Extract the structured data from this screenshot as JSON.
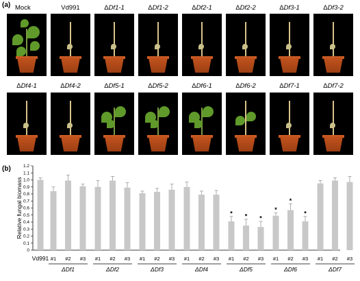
{
  "panel_a": {
    "label": "(a)",
    "rows": [
      [
        {
          "name": "Mock",
          "healthy": 3
        },
        {
          "name": "Vd991",
          "healthy": 0
        },
        {
          "name": "ΔDf1-1",
          "healthy": 0
        },
        {
          "name": "ΔDf1-2",
          "healthy": 0
        },
        {
          "name": "ΔDf2-1",
          "healthy": 0
        },
        {
          "name": "ΔDf2-2",
          "healthy": 0
        },
        {
          "name": "ΔDf3-1",
          "healthy": 0
        },
        {
          "name": "ΔDf3-2",
          "healthy": 0
        }
      ],
      [
        {
          "name": "ΔDf4-1",
          "healthy": 0
        },
        {
          "name": "ΔDf4-2",
          "healthy": 0
        },
        {
          "name": "ΔDf5-1",
          "healthy": 2
        },
        {
          "name": "ΔDf5-2",
          "healthy": 2
        },
        {
          "name": "ΔDf6-1",
          "healthy": 2
        },
        {
          "name": "ΔDf6-2",
          "healthy": 1
        },
        {
          "name": "ΔDf7-1",
          "healthy": 0
        },
        {
          "name": "ΔDf7-2",
          "healthy": 0
        }
      ]
    ]
  },
  "panel_b": {
    "label": "(b)"
  },
  "colors": {
    "bar": "#c8c8c8",
    "pot": "#b84c1a",
    "leaf_healthy": "#5f9a2a",
    "leaf_wilted": "#c9c08a"
  },
  "chart_data": {
    "type": "bar",
    "ylabel": "Relative fungal biomass",
    "ylim": [
      0,
      1.2
    ],
    "yticks": [
      "0",
      "0.1",
      "0.2",
      "0.3",
      "0.4",
      "0.5",
      "0.6",
      "0.7",
      "0.8",
      "0.9",
      "1.0",
      "1.1",
      "1.2"
    ],
    "categories": [
      "Vd991",
      "#1",
      "#2",
      "#3",
      "#1",
      "#2",
      "#3",
      "#1",
      "#2",
      "#3",
      "#1",
      "#2",
      "#3",
      "#1",
      "#2",
      "#3",
      "#1",
      "#2",
      "#3",
      "#1",
      "#2",
      "#3"
    ],
    "values": [
      1.0,
      0.84,
      0.99,
      0.91,
      0.9,
      0.99,
      0.89,
      0.81,
      0.83,
      0.86,
      0.9,
      0.79,
      0.79,
      0.41,
      0.35,
      0.33,
      0.49,
      0.57,
      0.41,
      0.95,
      0.99,
      0.97
    ],
    "errors": [
      0.03,
      0.06,
      0.08,
      0.03,
      0.09,
      0.06,
      0.07,
      0.03,
      0.05,
      0.08,
      0.07,
      0.05,
      0.06,
      0.07,
      0.09,
      0.08,
      0.04,
      0.09,
      0.07,
      0.04,
      0.04,
      0.08
    ],
    "significant": [
      false,
      false,
      false,
      false,
      false,
      false,
      false,
      false,
      false,
      false,
      false,
      false,
      false,
      true,
      true,
      true,
      true,
      true,
      true,
      false,
      false,
      false
    ],
    "groups": [
      {
        "label": "ΔDf1",
        "start": 1,
        "end": 3
      },
      {
        "label": "ΔDf2",
        "start": 4,
        "end": 6
      },
      {
        "label": "ΔDf3",
        "start": 7,
        "end": 9
      },
      {
        "label": "ΔDf4",
        "start": 10,
        "end": 12
      },
      {
        "label": "ΔDf5",
        "start": 13,
        "end": 15
      },
      {
        "label": "ΔDf6",
        "start": 16,
        "end": 18
      },
      {
        "label": "ΔDf7",
        "start": 19,
        "end": 21
      }
    ],
    "significance_marker": "*"
  }
}
